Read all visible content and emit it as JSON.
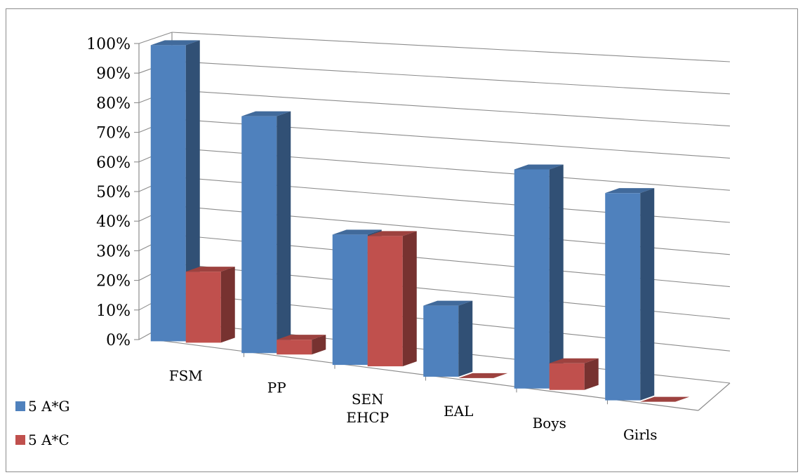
{
  "chart_data": {
    "type": "bar",
    "title": "",
    "xlabel": "",
    "ylabel": "",
    "ylim": [
      0,
      100
    ],
    "yticks": [
      "0%",
      "10%",
      "20%",
      "30%",
      "40%",
      "50%",
      "60%",
      "70%",
      "80%",
      "90%",
      "100%"
    ],
    "categories": [
      [
        "FSM"
      ],
      [
        "PP"
      ],
      [
        "SEN",
        "EHCP"
      ],
      [
        "EAL"
      ],
      [
        "Boys"
      ],
      [
        "Girls"
      ]
    ],
    "series": [
      {
        "name": "5 A*G",
        "color": "#4f81bd",
        "values": [
          100,
          80,
          44,
          24,
          74,
          70
        ]
      },
      {
        "name": "5 A*C",
        "color": "#c0504d",
        "values": [
          24,
          5,
          44,
          0,
          9,
          0
        ]
      }
    ],
    "grid": true,
    "legend": "bottom-left",
    "projection": "3d-perspective"
  }
}
